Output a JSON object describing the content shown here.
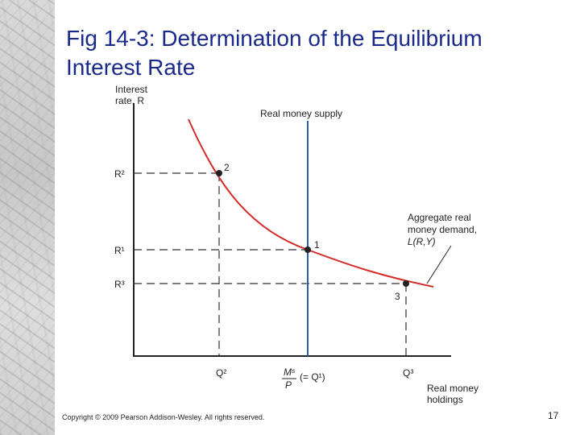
{
  "slide": {
    "title_line1": "Fig 14-3: Determination of the Equilibrium",
    "title_line2": "Interest Rate",
    "copyright": "Copyright © 2009 Pearson Addison-Wesley. All rights reserved.",
    "page_number": "17"
  },
  "diagram": {
    "y_axis_label_line1": "Interest",
    "y_axis_label_line2": "rate, R",
    "x_axis_label_line1": "Real money",
    "x_axis_label_line2": "holdings",
    "supply_label": "Real money supply",
    "demand_label_line1": "Aggregate real",
    "demand_label_line2": "money demand,",
    "demand_label_line3": "L(R,Y)",
    "y_ticks": [
      "R²",
      "R¹",
      "R³"
    ],
    "x_ticks": [
      "Q²",
      "Q³"
    ],
    "ms_numerator": "Mˢ",
    "ms_denominator": "P",
    "ms_paren": "(= Q¹)",
    "points": [
      "2",
      "1",
      "3"
    ],
    "colors": {
      "supply": "#2b5fa8",
      "demand": "#d42a2a"
    }
  }
}
